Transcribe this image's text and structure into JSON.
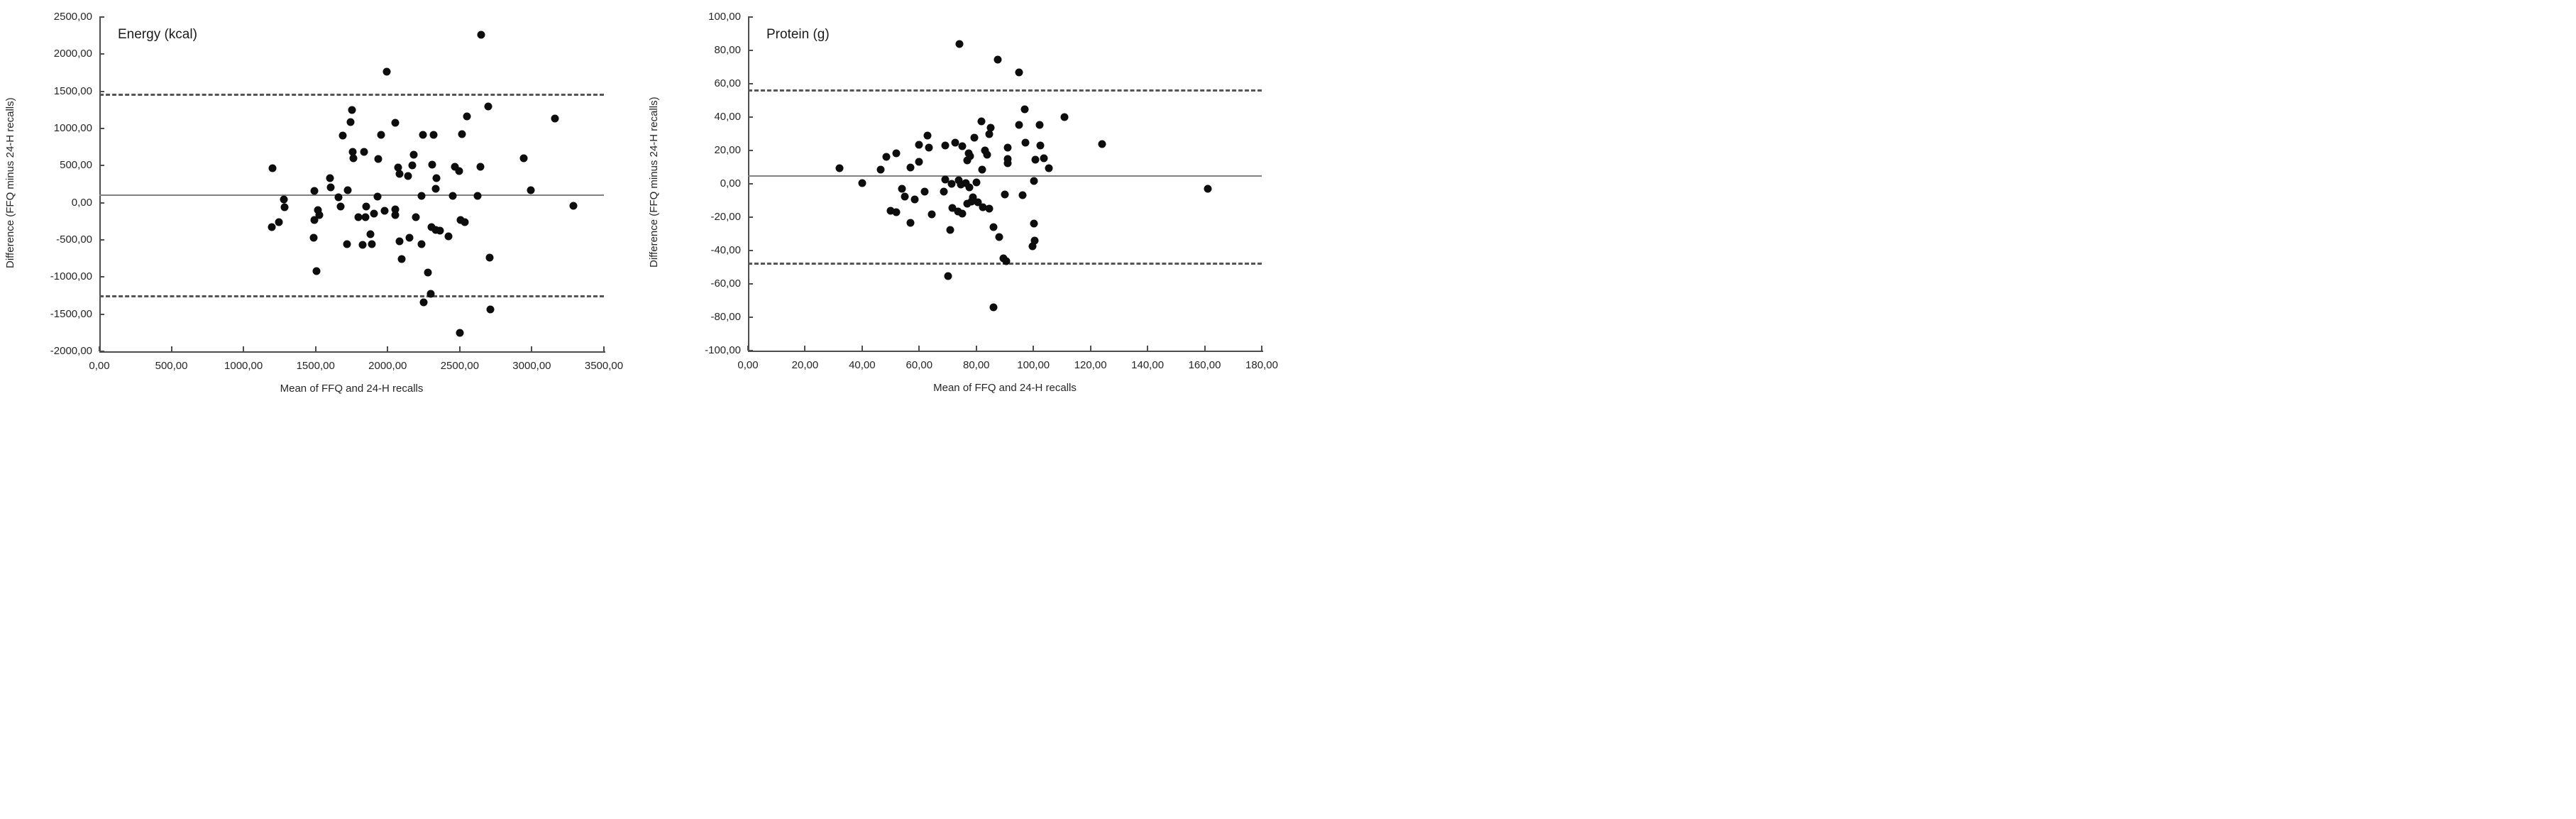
{
  "figure_description": "Two Bland-Altman agreement scatter plots comparing FFQ and 24-H recalls",
  "chart_data": [
    {
      "type": "scatter",
      "title": "Energy (kcal)",
      "xlabel": "Mean of FFQ and 24-H recalls",
      "ylabel": "Difference (FFQ minus 24-H recalls)",
      "xlim": [
        0,
        3500
      ],
      "ylim": [
        -2000,
        2500
      ],
      "grid": false,
      "legend": "none",
      "mean_line": 100,
      "upper_loa": 1455,
      "lower_loa": -1255,
      "xticks": [
        {
          "v": 0,
          "label": "0,00"
        },
        {
          "v": 500,
          "label": "500,00"
        },
        {
          "v": 1000,
          "label": "1000,00"
        },
        {
          "v": 1500,
          "label": "1500,00"
        },
        {
          "v": 2000,
          "label": "2000,00"
        },
        {
          "v": 2500,
          "label": "2500,00"
        },
        {
          "v": 3000,
          "label": "3000,00"
        },
        {
          "v": 3500,
          "label": "3500,00"
        }
      ],
      "yticks": [
        {
          "v": 2500,
          "label": "2500,00"
        },
        {
          "v": 2000,
          "label": "2000,00"
        },
        {
          "v": 1500,
          "label": "1500,00"
        },
        {
          "v": 1000,
          "label": "1000,00"
        },
        {
          "v": 500,
          "label": "500,00"
        },
        {
          "v": 0,
          "label": "0,00"
        },
        {
          "v": -500,
          "label": "-500,00"
        },
        {
          "v": -1000,
          "label": "-1000,00"
        },
        {
          "v": -1500,
          "label": "-1500,00"
        },
        {
          "v": -2000,
          "label": "-2000,00"
        }
      ],
      "points": [
        [
          1195,
          -325
        ],
        [
          1200,
          465
        ],
        [
          1245,
          -265
        ],
        [
          1280,
          45
        ],
        [
          1285,
          -60
        ],
        [
          1485,
          -470
        ],
        [
          1490,
          155
        ],
        [
          1490,
          -230
        ],
        [
          1505,
          -925
        ],
        [
          1515,
          -100
        ],
        [
          1525,
          -170
        ],
        [
          1600,
          330
        ],
        [
          1605,
          210
        ],
        [
          1660,
          70
        ],
        [
          1675,
          -50
        ],
        [
          1690,
          905
        ],
        [
          1720,
          -560
        ],
        [
          1725,
          165
        ],
        [
          1745,
          1090
        ],
        [
          1750,
          1245
        ],
        [
          1755,
          680
        ],
        [
          1760,
          595
        ],
        [
          1795,
          -195
        ],
        [
          1825,
          -565
        ],
        [
          1835,
          680
        ],
        [
          1845,
          -195
        ],
        [
          1850,
          -55
        ],
        [
          1880,
          -420
        ],
        [
          1890,
          -560
        ],
        [
          1905,
          -150
        ],
        [
          1930,
          80
        ],
        [
          1935,
          585
        ],
        [
          1955,
          910
        ],
        [
          1980,
          -110
        ],
        [
          1995,
          1765
        ],
        [
          2055,
          1075
        ],
        [
          2055,
          -85
        ],
        [
          2055,
          -170
        ],
        [
          2070,
          475
        ],
        [
          2080,
          385
        ],
        [
          2080,
          -515
        ],
        [
          2095,
          -760
        ],
        [
          2140,
          360
        ],
        [
          2150,
          -470
        ],
        [
          2170,
          505
        ],
        [
          2180,
          650
        ],
        [
          2195,
          -190
        ],
        [
          2235,
          90
        ],
        [
          2235,
          -560
        ],
        [
          2245,
          910
        ],
        [
          2250,
          -1345
        ],
        [
          2280,
          -935
        ],
        [
          2300,
          -1225
        ],
        [
          2305,
          -325
        ],
        [
          2310,
          515
        ],
        [
          2320,
          910
        ],
        [
          2335,
          190
        ],
        [
          2335,
          -370
        ],
        [
          2340,
          330
        ],
        [
          2365,
          -375
        ],
        [
          2420,
          -455
        ],
        [
          2450,
          90
        ],
        [
          2465,
          480
        ],
        [
          2495,
          425
        ],
        [
          2500,
          -1755
        ],
        [
          2505,
          -230
        ],
        [
          2515,
          920
        ],
        [
          2535,
          -265
        ],
        [
          2550,
          1160
        ],
        [
          2625,
          95
        ],
        [
          2645,
          480
        ],
        [
          2650,
          2260
        ],
        [
          2700,
          1300
        ],
        [
          2705,
          -735
        ],
        [
          2710,
          -1440
        ],
        [
          2945,
          600
        ],
        [
          2995,
          170
        ],
        [
          3160,
          1130
        ],
        [
          3290,
          -40
        ]
      ]
    },
    {
      "type": "scatter",
      "title": "Protein (g)",
      "xlabel": "Mean of FFQ and 24-H recalls",
      "ylabel": "Difference (FFQ minus 24-H recalls)",
      "xlim": [
        0,
        180
      ],
      "ylim": [
        -100,
        100
      ],
      "grid": false,
      "legend": "none",
      "mean_line": 4.5,
      "upper_loa": 56,
      "lower_loa": -47.5,
      "xticks": [
        {
          "v": 0,
          "label": "0,00"
        },
        {
          "v": 20,
          "label": "20,00"
        },
        {
          "v": 40,
          "label": "40,00"
        },
        {
          "v": 60,
          "label": "60,00"
        },
        {
          "v": 80,
          "label": "80,00"
        },
        {
          "v": 100,
          "label": "100,00"
        },
        {
          "v": 120,
          "label": "120,00"
        },
        {
          "v": 140,
          "label": "140,00"
        },
        {
          "v": 160,
          "label": "160,00"
        },
        {
          "v": 180,
          "label": "180,00"
        }
      ],
      "yticks": [
        {
          "v": 100,
          "label": "100,00"
        },
        {
          "v": 80,
          "label": "80,00"
        },
        {
          "v": 60,
          "label": "60,00"
        },
        {
          "v": 40,
          "label": "40,00"
        },
        {
          "v": 20,
          "label": "20,00"
        },
        {
          "v": 0,
          "label": "0,00"
        },
        {
          "v": -20,
          "label": "-20,00"
        },
        {
          "v": -40,
          "label": "-40,00"
        },
        {
          "v": -60,
          "label": "-60,00"
        },
        {
          "v": -80,
          "label": "-80,00"
        },
        {
          "v": -100,
          "label": "-100,00"
        }
      ],
      "points": [
        [
          32,
          9.5
        ],
        [
          40,
          0.5
        ],
        [
          46.5,
          8.5
        ],
        [
          48.5,
          16
        ],
        [
          50,
          -16
        ],
        [
          52,
          18.5
        ],
        [
          52,
          -17
        ],
        [
          54,
          -3
        ],
        [
          55,
          -7.5
        ],
        [
          57,
          10
        ],
        [
          57,
          -23.5
        ],
        [
          58.5,
          -9.5
        ],
        [
          60,
          23.5
        ],
        [
          60,
          13
        ],
        [
          62,
          -4.5
        ],
        [
          63,
          29
        ],
        [
          63.5,
          21.5
        ],
        [
          64.5,
          -18.5
        ],
        [
          68.5,
          -4.5
        ],
        [
          69,
          23
        ],
        [
          69,
          2.5
        ],
        [
          70,
          -55.5
        ],
        [
          70.8,
          -27.5
        ],
        [
          71.4,
          0
        ],
        [
          71.7,
          -14.5
        ],
        [
          72.7,
          24.5
        ],
        [
          73.5,
          -16.5
        ],
        [
          73.9,
          2
        ],
        [
          74,
          84
        ],
        [
          74.5,
          -0.5
        ],
        [
          75,
          22.5
        ],
        [
          75,
          -18
        ],
        [
          76.3,
          0.5
        ],
        [
          76.9,
          14
        ],
        [
          76.8,
          -12
        ],
        [
          77.3,
          18.5
        ],
        [
          77.5,
          -2
        ],
        [
          77.9,
          16.5
        ],
        [
          78.3,
          -10.5
        ],
        [
          78.9,
          -8
        ],
        [
          79.4,
          27.5
        ],
        [
          80.1,
          1
        ],
        [
          80.6,
          -11
        ],
        [
          82,
          8.5
        ],
        [
          81.9,
          37.5
        ],
        [
          82.2,
          -14
        ],
        [
          83.1,
          20
        ],
        [
          83.9,
          17.5
        ],
        [
          84.5,
          30
        ],
        [
          84.5,
          -15
        ],
        [
          85.1,
          33.5
        ],
        [
          86,
          -26
        ],
        [
          86,
          -74
        ],
        [
          87.5,
          74.5
        ],
        [
          88.1,
          -32
        ],
        [
          89.5,
          -44.5
        ],
        [
          90,
          -6.5
        ],
        [
          90.5,
          -46.5
        ],
        [
          91,
          21.5
        ],
        [
          91,
          15
        ],
        [
          91,
          12.5
        ],
        [
          94.9,
          67
        ],
        [
          94.9,
          35.5
        ],
        [
          96.3,
          -7
        ],
        [
          96.9,
          44.5
        ],
        [
          97.1,
          24.5
        ],
        [
          99.6,
          -37.5
        ],
        [
          100.2,
          1.5
        ],
        [
          100.2,
          -24
        ],
        [
          100.5,
          -34
        ],
        [
          100.6,
          14.5
        ],
        [
          102.1,
          35.5
        ],
        [
          102.5,
          23
        ],
        [
          103.7,
          15.5
        ],
        [
          105.4,
          9.5
        ],
        [
          111,
          40
        ],
        [
          124,
          24
        ],
        [
          161,
          -3
        ]
      ]
    }
  ]
}
